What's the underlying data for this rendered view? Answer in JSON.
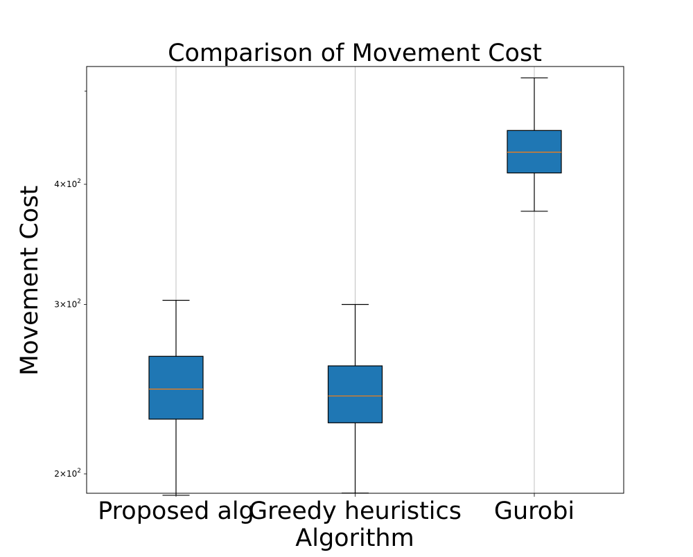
{
  "chart_data": {
    "type": "box",
    "title": "Comparison of Movement Cost",
    "xlabel": "Algorithm",
    "ylabel": "Movement Cost",
    "yscale": "log",
    "ylim": [
      180,
      540
    ],
    "yticks": [
      {
        "value": 200,
        "mantissa": "2",
        "base": "10",
        "exp": "2"
      },
      {
        "value": 300,
        "mantissa": "3",
        "base": "10",
        "exp": "2"
      },
      {
        "value": 400,
        "mantissa": "4",
        "base": "10",
        "exp": "2"
      }
    ],
    "categories": [
      "Proposed alg",
      "Greedy heuristics",
      "Gurobi"
    ],
    "boxes": [
      {
        "label": "Proposed alg",
        "whisker_low": 190,
        "q1": 228,
        "median": 245,
        "q3": 265,
        "whisker_high": 303
      },
      {
        "label": "Greedy heuristics",
        "whisker_low": 191,
        "q1": 226,
        "median": 241,
        "q3": 259,
        "whisker_high": 300
      },
      {
        "label": "Gurobi",
        "whisker_low": 375,
        "q1": 411,
        "median": 432,
        "q3": 455,
        "whisker_high": 516
      }
    ],
    "grid": {
      "x": true,
      "y": false
    },
    "colors": {
      "box_fill": "#1f77b4",
      "median": "#ff7f0e",
      "grid": "#b0b0b0",
      "stroke": "#000000"
    }
  }
}
